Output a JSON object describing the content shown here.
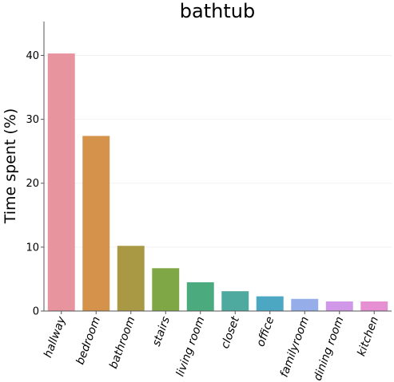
{
  "chart_data": {
    "type": "bar",
    "title": "bathtub",
    "xlabel": "",
    "ylabel": "Time spent (%)",
    "categories": [
      "hallway",
      "bedroom",
      "bathroom",
      "stairs",
      "living room",
      "closet",
      "office",
      "familyroom",
      "dining room",
      "kitchen"
    ],
    "values": [
      40.3,
      27.4,
      10.2,
      6.7,
      4.5,
      3.1,
      2.3,
      1.9,
      1.5,
      1.5
    ],
    "colors": [
      "#e8949f",
      "#d5924b",
      "#a99944",
      "#80a745",
      "#4bab7f",
      "#4ea99f",
      "#4ca7c2",
      "#95aee9",
      "#d197e8",
      "#e68fd2"
    ],
    "ylim": [
      0,
      45.3
    ],
    "yticks": [
      0,
      10,
      20,
      30,
      40
    ],
    "grid": true,
    "legend": "none"
  }
}
